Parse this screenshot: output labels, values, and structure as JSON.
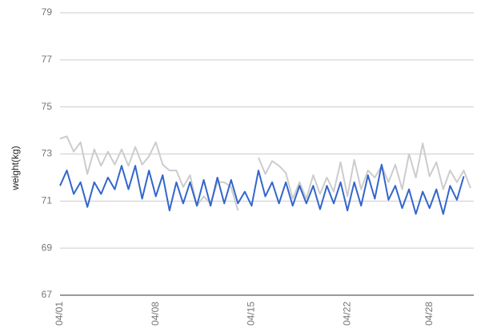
{
  "chart_data": {
    "type": "line",
    "y_label": "weight(kg)",
    "categories": [
      "04/01",
      null,
      null,
      null,
      null,
      null,
      null,
      null,
      null,
      null,
      null,
      null,
      null,
      null,
      "04/08",
      null,
      null,
      null,
      null,
      null,
      null,
      null,
      null,
      null,
      null,
      null,
      null,
      null,
      "04/15",
      null,
      null,
      null,
      null,
      null,
      null,
      null,
      null,
      null,
      null,
      null,
      null,
      null,
      "04/22",
      null,
      null,
      null,
      null,
      null,
      null,
      null,
      null,
      null,
      null,
      null,
      "04/28",
      null,
      null,
      null,
      null,
      null,
      null
    ],
    "ylim": [
      67,
      79
    ],
    "yticks": [
      67,
      69,
      71,
      73,
      75,
      77,
      79
    ],
    "grid": true,
    "series": [
      {
        "color": "#cccccc",
        "values": [
          73.65,
          73.75,
          73.1,
          73.5,
          72.15,
          73.2,
          72.5,
          73.1,
          72.55,
          73.2,
          72.5,
          73.3,
          72.55,
          72.9,
          73.5,
          72.55,
          72.3,
          72.3,
          71.6,
          72.1,
          70.8,
          71.2,
          70.9,
          71.8,
          71.8,
          71.6,
          70.6,
          null,
          null,
          72.85,
          72.15,
          72.7,
          72.5,
          72.2,
          71.1,
          71.8,
          71.1,
          72.1,
          71.3,
          72.0,
          71.4,
          72.65,
          71.2,
          72.75,
          71.5,
          72.3,
          72.0,
          72.5,
          71.8,
          72.55,
          71.5,
          73.0,
          72.0,
          73.45,
          72.05,
          72.65,
          71.5,
          72.3,
          71.8,
          72.3,
          71.55
        ]
      },
      {
        "color": "#3366cc",
        "values": [
          71.65,
          72.3,
          71.3,
          71.8,
          70.75,
          71.8,
          71.3,
          72.0,
          71.5,
          72.5,
          71.5,
          72.5,
          71.1,
          72.3,
          71.2,
          72.1,
          70.6,
          71.8,
          70.9,
          71.8,
          70.8,
          71.9,
          70.8,
          72.0,
          70.9,
          71.9,
          70.9,
          71.4,
          70.8,
          72.3,
          71.2,
          71.8,
          70.9,
          71.8,
          70.8,
          71.65,
          70.9,
          71.65,
          70.65,
          71.65,
          70.9,
          71.8,
          70.6,
          71.8,
          70.8,
          72.1,
          71.1,
          72.55,
          71.05,
          71.65,
          70.7,
          71.5,
          70.45,
          71.4,
          70.7,
          71.5,
          70.45,
          71.65,
          71.05,
          72.05,
          null
        ]
      }
    ]
  }
}
